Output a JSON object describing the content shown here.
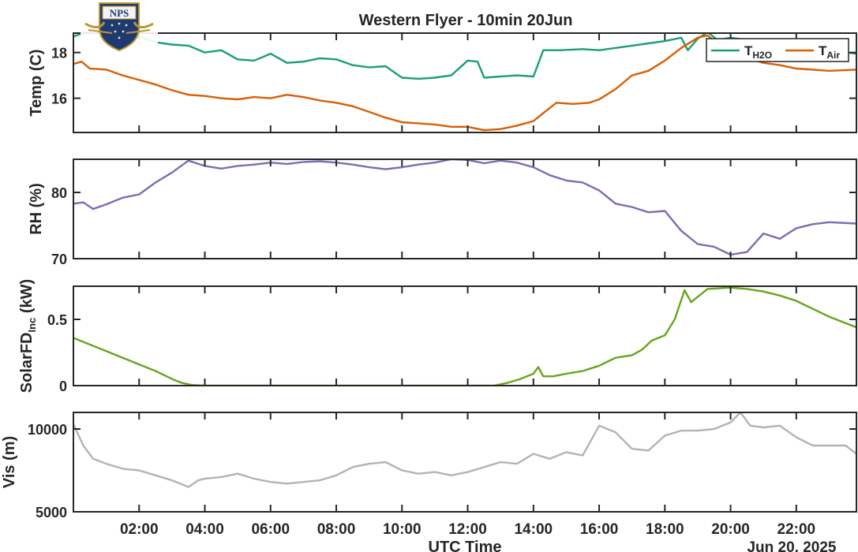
{
  "title": "Western Flyer - 10min 20Jun",
  "logo_text": "NPS",
  "xlabel": "UTC Time",
  "date_label": "Jun 20, 2025",
  "colors": {
    "h2o": "#1b9e77",
    "air": "#d95f02",
    "rh": "#7570b3",
    "solar": "#66a61e",
    "vis": "#b3b3b3",
    "axis": "#262626"
  },
  "chart_data": [
    {
      "type": "line",
      "ylabel": "Temp (C)",
      "ylim": [
        14.5,
        18.85
      ],
      "yticks": [
        16,
        18
      ],
      "ytick_labels": [
        "16",
        "18"
      ],
      "xlim": [
        0,
        23.83
      ],
      "legend": {
        "placement": "top-right",
        "items": [
          {
            "main": "T",
            "sub": "H2O",
            "color": "#1b9e77"
          },
          {
            "main": "T",
            "sub": "Air",
            "color": "#d95f02"
          }
        ]
      },
      "series": [
        {
          "key": "h2o",
          "color": "#1b9e77",
          "points": [
            [
              0.0,
              18.7
            ],
            [
              0.5,
              18.95
            ],
            [
              1.0,
              18.9
            ],
            [
              1.5,
              18.75
            ],
            [
              2.0,
              18.7
            ],
            [
              2.5,
              18.45
            ],
            [
              3.0,
              18.35
            ],
            [
              3.5,
              18.3
            ],
            [
              4.0,
              18.0
            ],
            [
              4.5,
              18.1
            ],
            [
              5.0,
              17.7
            ],
            [
              5.5,
              17.65
            ],
            [
              6.0,
              17.95
            ],
            [
              6.5,
              17.55
            ],
            [
              7.0,
              17.6
            ],
            [
              7.5,
              17.75
            ],
            [
              8.0,
              17.7
            ],
            [
              8.5,
              17.45
            ],
            [
              9.0,
              17.35
            ],
            [
              9.5,
              17.4
            ],
            [
              10.0,
              16.9
            ],
            [
              10.5,
              16.85
            ],
            [
              11.0,
              16.9
            ],
            [
              11.5,
              17.0
            ],
            [
              12.0,
              17.65
            ],
            [
              12.3,
              17.6
            ],
            [
              12.5,
              16.9
            ],
            [
              13.0,
              16.95
            ],
            [
              13.5,
              17.0
            ],
            [
              14.0,
              16.95
            ],
            [
              14.3,
              18.1
            ],
            [
              14.8,
              18.1
            ],
            [
              15.5,
              18.15
            ],
            [
              16.0,
              18.1
            ],
            [
              16.5,
              18.2
            ],
            [
              17.0,
              18.3
            ],
            [
              17.5,
              18.4
            ],
            [
              18.0,
              18.5
            ],
            [
              18.5,
              18.65
            ],
            [
              18.7,
              18.1
            ],
            [
              19.0,
              18.6
            ],
            [
              19.3,
              18.9
            ],
            [
              19.6,
              18.55
            ],
            [
              20.0,
              18.65
            ],
            [
              21.0,
              18.45
            ],
            [
              22.0,
              18.25
            ],
            [
              23.0,
              18.1
            ],
            [
              23.83,
              17.95
            ]
          ]
        },
        {
          "key": "air",
          "color": "#d95f02",
          "points": [
            [
              0.0,
              17.5
            ],
            [
              0.25,
              17.6
            ],
            [
              0.5,
              17.3
            ],
            [
              1.0,
              17.25
            ],
            [
              1.5,
              17.0
            ],
            [
              2.0,
              16.8
            ],
            [
              2.5,
              16.6
            ],
            [
              3.0,
              16.35
            ],
            [
              3.5,
              16.15
            ],
            [
              4.0,
              16.1
            ],
            [
              4.5,
              16.0
            ],
            [
              5.0,
              15.95
            ],
            [
              5.5,
              16.05
            ],
            [
              6.0,
              16.0
            ],
            [
              6.5,
              16.15
            ],
            [
              7.0,
              16.05
            ],
            [
              7.5,
              15.9
            ],
            [
              8.0,
              15.8
            ],
            [
              8.5,
              15.65
            ],
            [
              9.0,
              15.4
            ],
            [
              9.5,
              15.15
            ],
            [
              10.0,
              14.95
            ],
            [
              10.5,
              14.9
            ],
            [
              11.0,
              14.85
            ],
            [
              11.5,
              14.75
            ],
            [
              12.0,
              14.75
            ],
            [
              12.5,
              14.6
            ],
            [
              13.0,
              14.65
            ],
            [
              13.5,
              14.8
            ],
            [
              14.0,
              15.0
            ],
            [
              14.3,
              15.35
            ],
            [
              14.7,
              15.8
            ],
            [
              15.2,
              15.75
            ],
            [
              15.7,
              15.8
            ],
            [
              16.0,
              15.95
            ],
            [
              16.5,
              16.4
            ],
            [
              17.0,
              17.0
            ],
            [
              17.5,
              17.2
            ],
            [
              18.0,
              17.65
            ],
            [
              18.5,
              18.2
            ],
            [
              19.0,
              18.65
            ],
            [
              19.3,
              18.75
            ],
            [
              19.6,
              18.4
            ],
            [
              20.0,
              18.25
            ],
            [
              20.5,
              17.75
            ],
            [
              21.0,
              17.55
            ],
            [
              21.5,
              17.45
            ],
            [
              22.0,
              17.3
            ],
            [
              22.5,
              17.25
            ],
            [
              23.0,
              17.2
            ],
            [
              23.83,
              17.25
            ]
          ]
        }
      ]
    },
    {
      "type": "line",
      "ylabel": "RH (%)",
      "ylim": [
        70,
        85
      ],
      "yticks": [
        70,
        80
      ],
      "ytick_labels": [
        "70",
        "80"
      ],
      "xlim": [
        0,
        23.83
      ],
      "series": [
        {
          "key": "rh",
          "color": "#7570b3",
          "points": [
            [
              0.0,
              78.3
            ],
            [
              0.3,
              78.5
            ],
            [
              0.6,
              77.5
            ],
            [
              1.0,
              78.2
            ],
            [
              1.5,
              79.2
            ],
            [
              2.0,
              79.7
            ],
            [
              2.5,
              81.5
            ],
            [
              3.0,
              83.0
            ],
            [
              3.5,
              84.8
            ],
            [
              4.0,
              84.0
            ],
            [
              4.5,
              83.6
            ],
            [
              5.0,
              84.0
            ],
            [
              5.5,
              84.2
            ],
            [
              6.0,
              84.5
            ],
            [
              6.5,
              84.3
            ],
            [
              7.0,
              84.6
            ],
            [
              7.5,
              84.7
            ],
            [
              8.0,
              84.5
            ],
            [
              8.5,
              84.2
            ],
            [
              9.0,
              83.8
            ],
            [
              9.5,
              83.5
            ],
            [
              10.0,
              83.8
            ],
            [
              10.5,
              84.2
            ],
            [
              11.0,
              84.5
            ],
            [
              11.5,
              85.0
            ],
            [
              12.0,
              84.9
            ],
            [
              12.5,
              84.4
            ],
            [
              13.0,
              84.8
            ],
            [
              13.5,
              84.5
            ],
            [
              14.0,
              83.8
            ],
            [
              14.5,
              82.6
            ],
            [
              15.0,
              81.8
            ],
            [
              15.5,
              81.5
            ],
            [
              16.0,
              80.3
            ],
            [
              16.5,
              78.3
            ],
            [
              17.0,
              77.8
            ],
            [
              17.5,
              77.0
            ],
            [
              18.0,
              77.2
            ],
            [
              18.5,
              74.2
            ],
            [
              19.0,
              72.2
            ],
            [
              19.5,
              71.8
            ],
            [
              20.0,
              70.6
            ],
            [
              20.5,
              71.0
            ],
            [
              21.0,
              73.8
            ],
            [
              21.5,
              73.0
            ],
            [
              22.0,
              74.6
            ],
            [
              22.5,
              75.2
            ],
            [
              23.0,
              75.5
            ],
            [
              23.83,
              75.3
            ]
          ]
        }
      ]
    },
    {
      "type": "line",
      "ylabel": "SolarFD",
      "ylabel_sub": "Inc",
      "ylabel_unit": "(kW)",
      "ylim": [
        0,
        0.75
      ],
      "yticks": [
        0,
        0.5
      ],
      "ytick_labels": [
        "0",
        "0.5"
      ],
      "xlim": [
        0,
        23.83
      ],
      "series": [
        {
          "key": "solar",
          "color": "#66a61e",
          "points": [
            [
              0.0,
              0.36
            ],
            [
              0.5,
              0.31
            ],
            [
              1.0,
              0.26
            ],
            [
              1.5,
              0.21
            ],
            [
              2.0,
              0.16
            ],
            [
              2.5,
              0.11
            ],
            [
              3.0,
              0.05
            ],
            [
              3.3,
              0.02
            ],
            [
              3.6,
              0.005
            ],
            [
              4.0,
              0.0
            ],
            [
              6.0,
              0.0
            ],
            [
              8.0,
              0.0
            ],
            [
              10.0,
              0.0
            ],
            [
              12.0,
              0.0
            ],
            [
              12.8,
              0.0
            ],
            [
              13.2,
              0.02
            ],
            [
              13.6,
              0.05
            ],
            [
              14.0,
              0.09
            ],
            [
              14.15,
              0.14
            ],
            [
              14.3,
              0.07
            ],
            [
              14.6,
              0.07
            ],
            [
              15.0,
              0.09
            ],
            [
              15.5,
              0.11
            ],
            [
              16.0,
              0.15
            ],
            [
              16.5,
              0.21
            ],
            [
              17.0,
              0.23
            ],
            [
              17.3,
              0.27
            ],
            [
              17.6,
              0.34
            ],
            [
              18.0,
              0.38
            ],
            [
              18.3,
              0.5
            ],
            [
              18.6,
              0.72
            ],
            [
              18.8,
              0.63
            ],
            [
              19.0,
              0.67
            ],
            [
              19.3,
              0.73
            ],
            [
              20.0,
              0.74
            ],
            [
              20.5,
              0.73
            ],
            [
              21.0,
              0.71
            ],
            [
              21.5,
              0.68
            ],
            [
              22.0,
              0.64
            ],
            [
              22.5,
              0.58
            ],
            [
              23.0,
              0.52
            ],
            [
              23.83,
              0.44
            ]
          ]
        }
      ]
    },
    {
      "type": "line",
      "ylabel": "Vis (m)",
      "ylim": [
        5000,
        11000
      ],
      "yticks": [
        5000,
        10000
      ],
      "ytick_labels": [
        "5000",
        "10000"
      ],
      "xlim": [
        0,
        23.83
      ],
      "series": [
        {
          "key": "vis",
          "color": "#b3b3b3",
          "points": [
            [
              0.0,
              10300
            ],
            [
              0.3,
              9000
            ],
            [
              0.6,
              8200
            ],
            [
              1.0,
              7900
            ],
            [
              1.5,
              7600
            ],
            [
              2.0,
              7500
            ],
            [
              2.5,
              7200
            ],
            [
              3.0,
              6900
            ],
            [
              3.5,
              6500
            ],
            [
              3.8,
              6900
            ],
            [
              4.0,
              7000
            ],
            [
              4.5,
              7100
            ],
            [
              5.0,
              7300
            ],
            [
              5.5,
              7000
            ],
            [
              6.0,
              6800
            ],
            [
              6.5,
              6700
            ],
            [
              7.0,
              6800
            ],
            [
              7.5,
              6900
            ],
            [
              8.0,
              7200
            ],
            [
              8.5,
              7700
            ],
            [
              9.0,
              7900
            ],
            [
              9.5,
              8000
            ],
            [
              10.0,
              7500
            ],
            [
              10.5,
              7300
            ],
            [
              11.0,
              7400
            ],
            [
              11.5,
              7200
            ],
            [
              12.0,
              7400
            ],
            [
              12.5,
              7700
            ],
            [
              13.0,
              8000
            ],
            [
              13.5,
              7900
            ],
            [
              14.0,
              8500
            ],
            [
              14.5,
              8200
            ],
            [
              15.0,
              8600
            ],
            [
              15.5,
              8400
            ],
            [
              16.0,
              10200
            ],
            [
              16.5,
              9800
            ],
            [
              17.0,
              8800
            ],
            [
              17.5,
              8700
            ],
            [
              18.0,
              9600
            ],
            [
              18.5,
              9900
            ],
            [
              19.0,
              9900
            ],
            [
              19.5,
              10000
            ],
            [
              20.0,
              10400
            ],
            [
              20.3,
              11000
            ],
            [
              20.6,
              10200
            ],
            [
              21.0,
              10100
            ],
            [
              21.5,
              10200
            ],
            [
              22.0,
              9500
            ],
            [
              22.5,
              9000
            ],
            [
              23.0,
              9000
            ],
            [
              23.5,
              9000
            ],
            [
              23.83,
              8500
            ]
          ]
        }
      ]
    }
  ],
  "x_axis": {
    "ticks": [
      2,
      4,
      6,
      8,
      10,
      12,
      14,
      16,
      18,
      20,
      22
    ],
    "tick_labels": [
      "02:00",
      "04:00",
      "06:00",
      "08:00",
      "10:00",
      "12:00",
      "14:00",
      "16:00",
      "18:00",
      "20:00",
      "22:00"
    ]
  }
}
